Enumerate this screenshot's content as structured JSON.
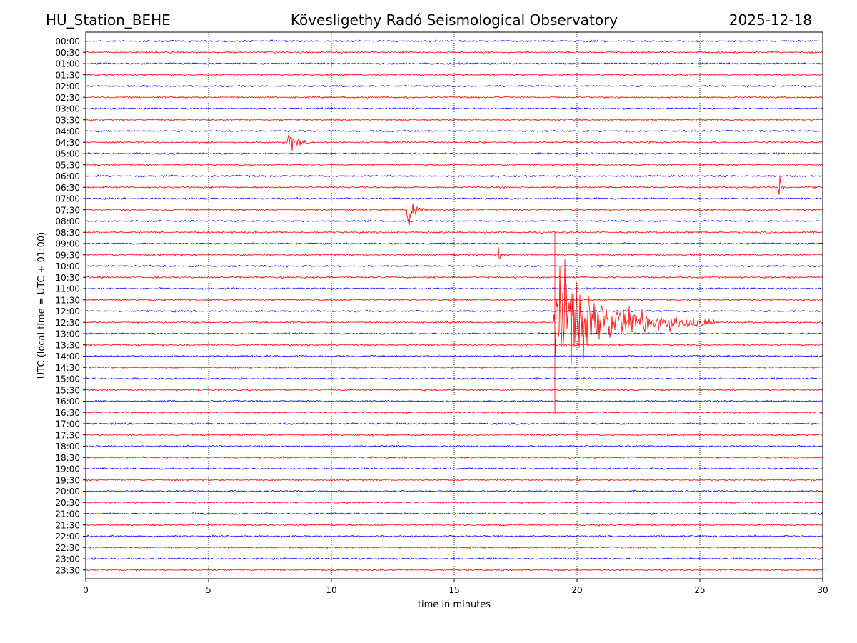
{
  "header": {
    "station": "HU_Station_BEHE",
    "observatory": "Kövesligethy Radó Seismological Observatory",
    "date": "2025-12-18"
  },
  "chart_data": {
    "type": "helicorder",
    "title": "Kövesligethy Radó Seismological Observatory",
    "xlabel": "time in minutes",
    "ylabel": "UTC (local time = UTC + 01:00)",
    "xlim": [
      0,
      30
    ],
    "xticks": [
      0,
      5,
      10,
      15,
      20,
      25,
      30
    ],
    "grid": "vertical dotted at every 5 minutes",
    "colors": {
      "even_rows": "#0000ff",
      "odd_rows": "#ff0000"
    },
    "rows": [
      "00:00",
      "00:30",
      "01:00",
      "01:30",
      "02:00",
      "02:30",
      "03:00",
      "03:30",
      "04:00",
      "04:30",
      "05:00",
      "05:30",
      "06:00",
      "06:30",
      "07:00",
      "07:30",
      "08:00",
      "08:30",
      "09:00",
      "09:30",
      "10:00",
      "10:30",
      "11:00",
      "11:30",
      "12:00",
      "12:30",
      "13:00",
      "13:30",
      "14:00",
      "14:30",
      "15:00",
      "15:30",
      "16:00",
      "16:30",
      "17:00",
      "17:30",
      "18:00",
      "18:30",
      "19:00",
      "19:30",
      "20:00",
      "20:30",
      "21:00",
      "21:30",
      "22:00",
      "22:30",
      "23:00",
      "23:30"
    ],
    "events": [
      {
        "row": "04:30",
        "minute": 8.2,
        "duration_min": 1.2,
        "amplitude_rows": 0.6
      },
      {
        "row": "06:30",
        "minute": 28.2,
        "duration_min": 0.3,
        "amplitude_rows": 1.0
      },
      {
        "row": "07:30",
        "minute": 13.1,
        "duration_min": 0.8,
        "amplitude_rows": 0.9
      },
      {
        "row": "09:30",
        "minute": 16.8,
        "duration_min": 0.2,
        "amplitude_rows": 0.5
      },
      {
        "row": "12:30",
        "minute": 19.1,
        "duration_min": 6.5,
        "amplitude_rows": 2.6,
        "spike_extent_rows": [
          -8,
          8
        ]
      }
    ]
  }
}
